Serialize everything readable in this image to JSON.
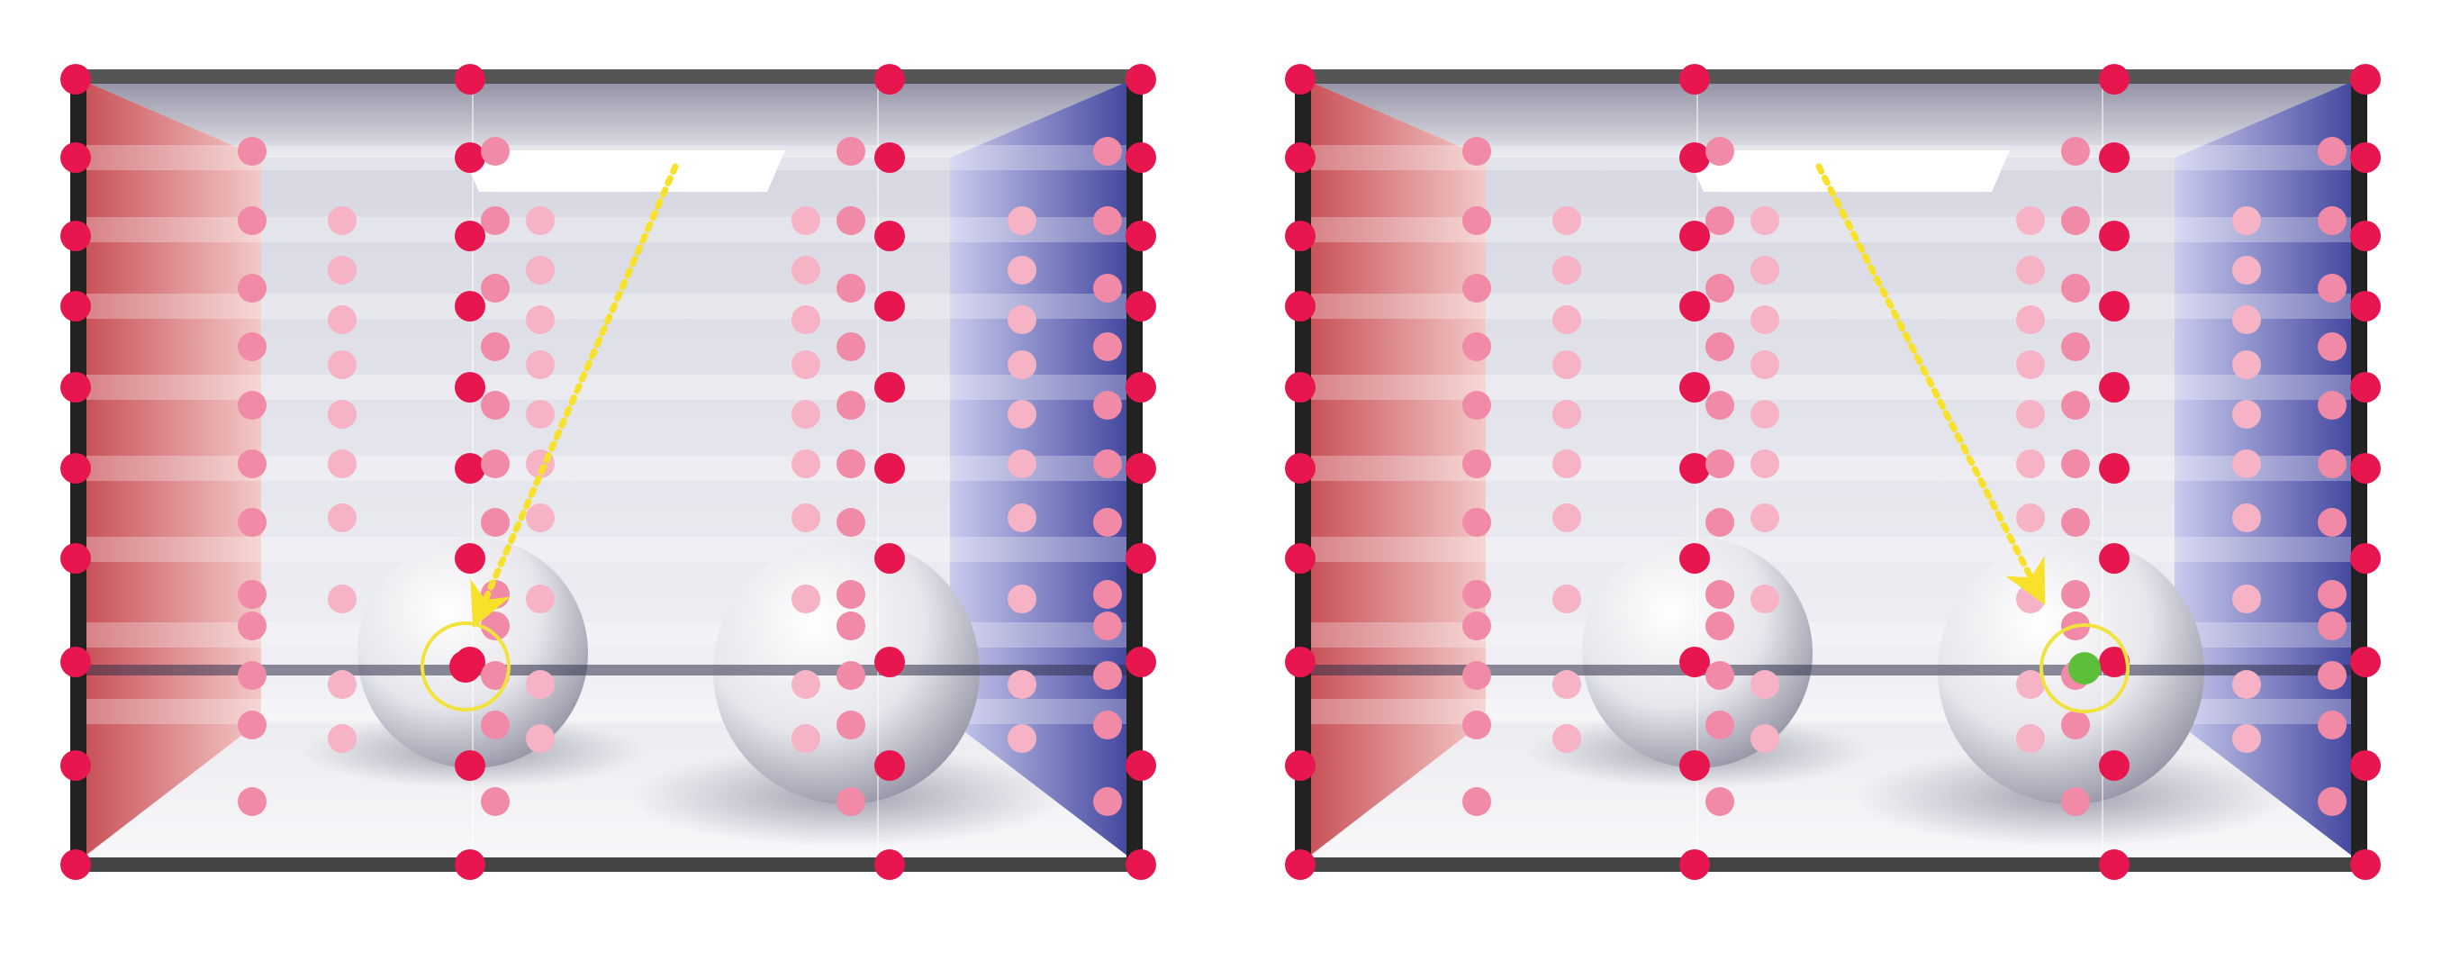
{
  "figure": {
    "panels": [
      {
        "id": "left",
        "hit_object": "left-sphere",
        "hit_point_color": "#e8144a"
      },
      {
        "id": "right",
        "hit_object": "right-sphere",
        "hit_point_color": "#5cbf3a"
      }
    ],
    "colors": {
      "probe_dot": "#e8164e",
      "probe_dot_faded": "#f08aa6",
      "probe_dot_light": "#f5b3c5",
      "ray": "#f7e12a",
      "highlight_ring": "#f1e33c",
      "left_wall": "#d86a6e",
      "right_wall": "#5a5fae",
      "frame": "#222222",
      "light_panel": "#ffffff"
    },
    "icons": [
      "probe-dot",
      "ray-arrow",
      "highlight-ring",
      "area-light",
      "sphere"
    ]
  }
}
